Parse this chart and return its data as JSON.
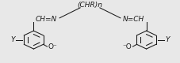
{
  "figsize": [
    2.27,
    0.8
  ],
  "dpi": 100,
  "bg_color": "#e8e8e8",
  "text_color": "#1a1a1a",
  "title": "(CHR)n",
  "label_CH_N_left": "CH=N",
  "label_N_CH_right": "N=CH",
  "label_Y_left": "Y",
  "label_Y_right": "Y",
  "label_O_left": "O⁻",
  "label_O_right": "⁻O",
  "font_size": 6.5,
  "line_color": "#1a1a1a",
  "line_width": 0.75,
  "xlim": [
    0,
    10
  ],
  "ylim": [
    0,
    4.2
  ]
}
